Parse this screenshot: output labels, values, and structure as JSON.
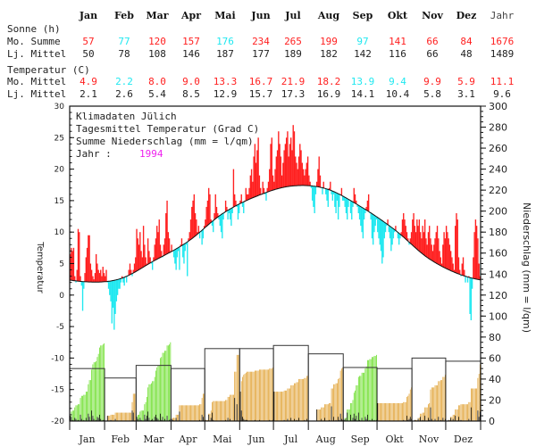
{
  "table": {
    "months": [
      "Jan",
      "Feb",
      "Mar",
      "Apr",
      "Mai",
      "Jun",
      "Jul",
      "Aug",
      "Sep",
      "Okt",
      "Nov",
      "Dez"
    ],
    "year_label": "Jahr",
    "sun_heading": "Sonne (h)",
    "temp_heading": "Temperatur (C)",
    "row_month_sum": "Mo. Summe",
    "row_longterm": "Lj. Mittel",
    "row_month_mean": "Mo. Mittel",
    "sun_month": [
      "57",
      "77",
      "120",
      "157",
      "176",
      "234",
      "265",
      "199",
      "97",
      "141",
      "66",
      "84",
      "1676"
    ],
    "sun_longterm": [
      "50",
      "78",
      "108",
      "146",
      "187",
      "177",
      "189",
      "182",
      "142",
      "116",
      "66",
      "48",
      "1489"
    ],
    "temp_month": [
      "4.9",
      "2.2",
      "8.0",
      "9.0",
      "13.3",
      "16.7",
      "21.9",
      "18.2",
      "13.9",
      "9.4",
      "9.9",
      "5.9",
      "11.1"
    ],
    "temp_longterm": [
      "2.1",
      "2.6",
      "5.4",
      "8.5",
      "12.9",
      "15.7",
      "17.3",
      "16.9",
      "14.1",
      "10.4",
      "5.8",
      "3.1",
      "9.6"
    ]
  },
  "colors": {
    "above": "#ff2020",
    "below": "#20e8f0",
    "normal_text": "#222222",
    "wet": "#66dd22",
    "dry": "#e0a030",
    "year": "#ee22ee"
  },
  "chart_data": {
    "type": "bar",
    "title_lines": [
      "Klimadaten Jülich",
      "Tagesmittel Temperatur (Grad C)",
      "Summe Niederschlag (mm = l/qm)"
    ],
    "year_label": "Jahr :",
    "year": "1994",
    "ylabel": "Temperatur",
    "y2label": "Niederschlag (mm = l/qm)",
    "ylim": [
      -20,
      30
    ],
    "y2lim": [
      0,
      300
    ],
    "yticks": [
      "-20",
      "-15",
      "-10",
      "-5",
      "0",
      "5",
      "10",
      "15",
      "20",
      "25",
      "30"
    ],
    "y2ticks": [
      "0",
      "20",
      "40",
      "60",
      "80",
      "100",
      "120",
      "140",
      "160",
      "180",
      "200",
      "220",
      "240",
      "260",
      "280",
      "300"
    ],
    "categories": [
      "Jan",
      "Feb",
      "Mar",
      "Apr",
      "Mai",
      "Jun",
      "Jul",
      "Aug",
      "Sep",
      "Okt",
      "Nov",
      "Dez"
    ],
    "daily_temp": [
      [
        6.5,
        7.5,
        7,
        7.5,
        3,
        2,
        4,
        10.5,
        10,
        3,
        1.5,
        -2.5,
        1,
        3.5,
        6,
        7.5,
        9.5,
        9.5,
        5,
        4,
        3,
        2.5,
        3.5,
        6.5,
        5,
        4,
        3.5,
        4,
        3,
        4.5,
        3.5
      ],
      [
        3,
        4,
        2,
        1,
        0,
        -1,
        -4.5,
        -2,
        -5.5,
        -3,
        -1,
        0,
        1,
        1,
        2,
        3,
        2,
        1.5,
        3,
        2,
        3,
        4,
        5,
        4,
        3,
        4,
        5,
        6
      ],
      [
        10.5,
        9,
        8,
        10,
        7,
        6,
        11,
        8,
        6,
        5,
        9,
        7,
        6,
        5,
        4,
        6,
        8,
        9,
        11,
        10,
        12,
        8,
        7,
        6,
        8,
        9,
        13,
        15,
        10,
        9,
        7
      ],
      [
        8,
        7,
        6,
        5,
        4,
        6,
        7,
        4,
        8,
        9,
        6,
        5,
        7,
        8,
        3,
        9,
        10,
        12,
        14,
        15,
        16,
        13,
        12,
        10,
        11,
        9,
        10,
        8,
        9,
        11
      ],
      [
        12,
        14,
        15,
        17,
        16,
        12,
        11,
        10,
        13,
        16,
        14,
        13,
        12,
        11,
        10,
        9,
        12,
        13,
        15,
        14,
        12,
        13,
        12,
        11,
        13,
        20,
        16,
        15,
        14,
        12,
        13
      ],
      [
        15,
        16,
        14,
        13,
        15,
        17,
        16,
        16,
        17,
        19,
        20,
        18,
        22,
        24,
        21,
        23,
        25,
        19,
        17,
        16,
        18,
        17,
        16,
        15,
        17,
        18,
        20,
        24,
        25,
        19
      ],
      [
        18,
        20,
        22,
        23,
        26,
        24,
        22,
        19,
        21,
        23,
        24,
        25,
        26,
        22,
        24,
        25,
        23,
        27,
        26,
        22,
        21,
        20,
        22,
        24,
        23,
        21,
        20,
        19,
        20,
        21,
        22
      ],
      [
        19,
        18,
        17,
        15,
        14,
        13,
        16,
        18,
        20,
        22,
        19,
        17,
        16,
        18,
        17,
        16,
        15,
        14,
        17,
        18,
        16,
        15,
        16,
        14,
        13,
        15,
        12,
        14,
        16,
        17,
        15
      ],
      [
        15,
        14,
        13,
        12,
        14,
        15,
        13,
        12,
        14,
        17,
        16,
        15,
        14,
        13,
        12,
        11,
        10,
        9,
        12,
        13,
        14,
        15,
        16,
        13,
        12,
        9,
        8,
        10,
        11,
        12
      ],
      [
        10,
        9,
        8,
        7,
        5,
        6,
        9,
        10,
        11,
        12,
        10,
        9,
        7,
        8,
        9,
        10,
        11,
        10,
        9,
        8,
        9,
        10,
        12,
        13,
        12,
        11,
        10,
        9,
        8,
        9,
        10
      ],
      [
        12,
        13,
        11,
        10,
        12,
        11,
        12,
        10,
        9,
        11,
        10,
        12,
        9,
        8,
        10,
        11,
        9,
        8,
        7,
        8,
        9,
        10,
        11,
        9,
        7,
        6,
        5,
        8,
        10,
        9
      ],
      [
        11,
        10,
        9,
        8,
        7,
        6,
        5,
        4,
        11,
        13,
        12,
        6,
        4,
        3,
        5,
        6,
        4,
        2,
        3,
        2,
        3,
        -3,
        -4,
        1,
        6,
        10,
        12,
        11,
        9,
        5,
        3
      ]
    ],
    "daily_precip": [
      [
        5,
        4,
        1,
        0,
        3,
        2,
        0,
        1,
        0,
        6,
        2,
        0,
        1,
        0,
        3,
        0,
        7,
        4,
        0,
        10,
        5,
        2,
        0,
        1,
        4,
        3,
        6,
        2,
        0,
        1,
        1
      ],
      [
        0,
        0,
        5,
        0,
        0,
        1,
        0,
        0,
        0,
        2,
        0,
        0,
        0,
        0,
        0,
        0,
        0,
        0,
        0,
        0,
        0,
        0,
        0,
        0,
        10,
        8,
        0,
        0
      ],
      [
        4,
        2,
        0,
        3,
        1,
        0,
        0,
        6,
        2,
        5,
        9,
        3,
        0,
        1,
        2,
        0,
        4,
        6,
        3,
        2,
        0,
        7,
        1,
        4,
        0,
        2,
        0,
        5,
        0,
        1,
        2
      ],
      [
        2,
        1,
        0,
        0,
        3,
        0,
        0,
        9,
        0,
        0,
        0,
        0,
        0,
        0,
        0,
        0,
        0,
        0,
        0,
        0,
        0,
        0,
        0,
        0,
        0,
        1,
        0,
        6,
        4,
        0
      ],
      [
        1,
        0,
        0,
        6,
        0,
        3,
        8,
        1,
        0,
        0,
        0,
        0,
        0,
        0,
        0,
        0,
        0,
        0,
        1,
        0,
        3,
        0,
        2,
        0,
        0,
        0,
        22,
        0,
        16,
        0,
        0
      ],
      [
        28,
        10,
        4,
        2,
        1,
        1,
        1,
        0,
        0,
        0,
        0,
        0,
        0,
        1,
        0,
        0,
        0,
        1,
        0,
        0,
        0,
        0,
        0,
        0,
        0,
        0,
        1,
        0,
        0,
        1
      ],
      [
        28,
        0,
        0,
        0,
        0,
        0,
        0,
        0,
        0,
        1,
        0,
        0,
        2,
        0,
        0,
        3,
        0,
        0,
        2,
        0,
        1,
        0,
        3,
        0,
        0,
        0,
        0,
        1,
        0,
        2,
        0
      ],
      [
        0,
        0,
        0,
        0,
        0,
        0,
        0,
        11,
        0,
        0,
        0,
        2,
        0,
        0,
        3,
        0,
        0,
        0,
        1,
        0,
        14,
        0,
        4,
        0,
        1,
        0,
        4,
        1,
        7,
        2,
        1
      ],
      [
        1,
        2,
        0,
        8,
        0,
        0,
        6,
        0,
        3,
        7,
        2,
        5,
        0,
        8,
        1,
        0,
        3,
        0,
        0,
        4,
        2,
        6,
        0,
        1,
        0,
        2,
        0,
        1,
        0,
        1
      ],
      [
        17,
        0,
        0,
        0,
        0,
        0,
        0,
        0,
        0,
        0,
        0,
        0,
        0,
        0,
        0,
        0,
        0,
        0,
        0,
        0,
        0,
        0,
        0,
        1,
        0,
        0,
        5,
        1,
        2,
        4,
        2
      ],
      [
        0,
        0,
        1,
        0,
        0,
        2,
        0,
        4,
        0,
        1,
        0,
        5,
        0,
        0,
        3,
        1,
        13,
        2,
        0,
        0,
        2,
        0,
        0,
        4,
        0,
        1,
        0,
        3,
        0,
        2
      ],
      [
        0,
        0,
        1,
        0,
        3,
        0,
        2,
        0,
        5,
        0,
        0,
        4,
        0,
        1,
        0,
        0,
        0,
        0,
        0,
        0,
        2,
        0,
        13,
        0,
        0,
        0,
        0,
        0,
        10,
        4,
        9
      ]
    ],
    "precip_normal": [
      50,
      41,
      53,
      50,
      69,
      69,
      72,
      64,
      51,
      50,
      60,
      57
    ]
  }
}
